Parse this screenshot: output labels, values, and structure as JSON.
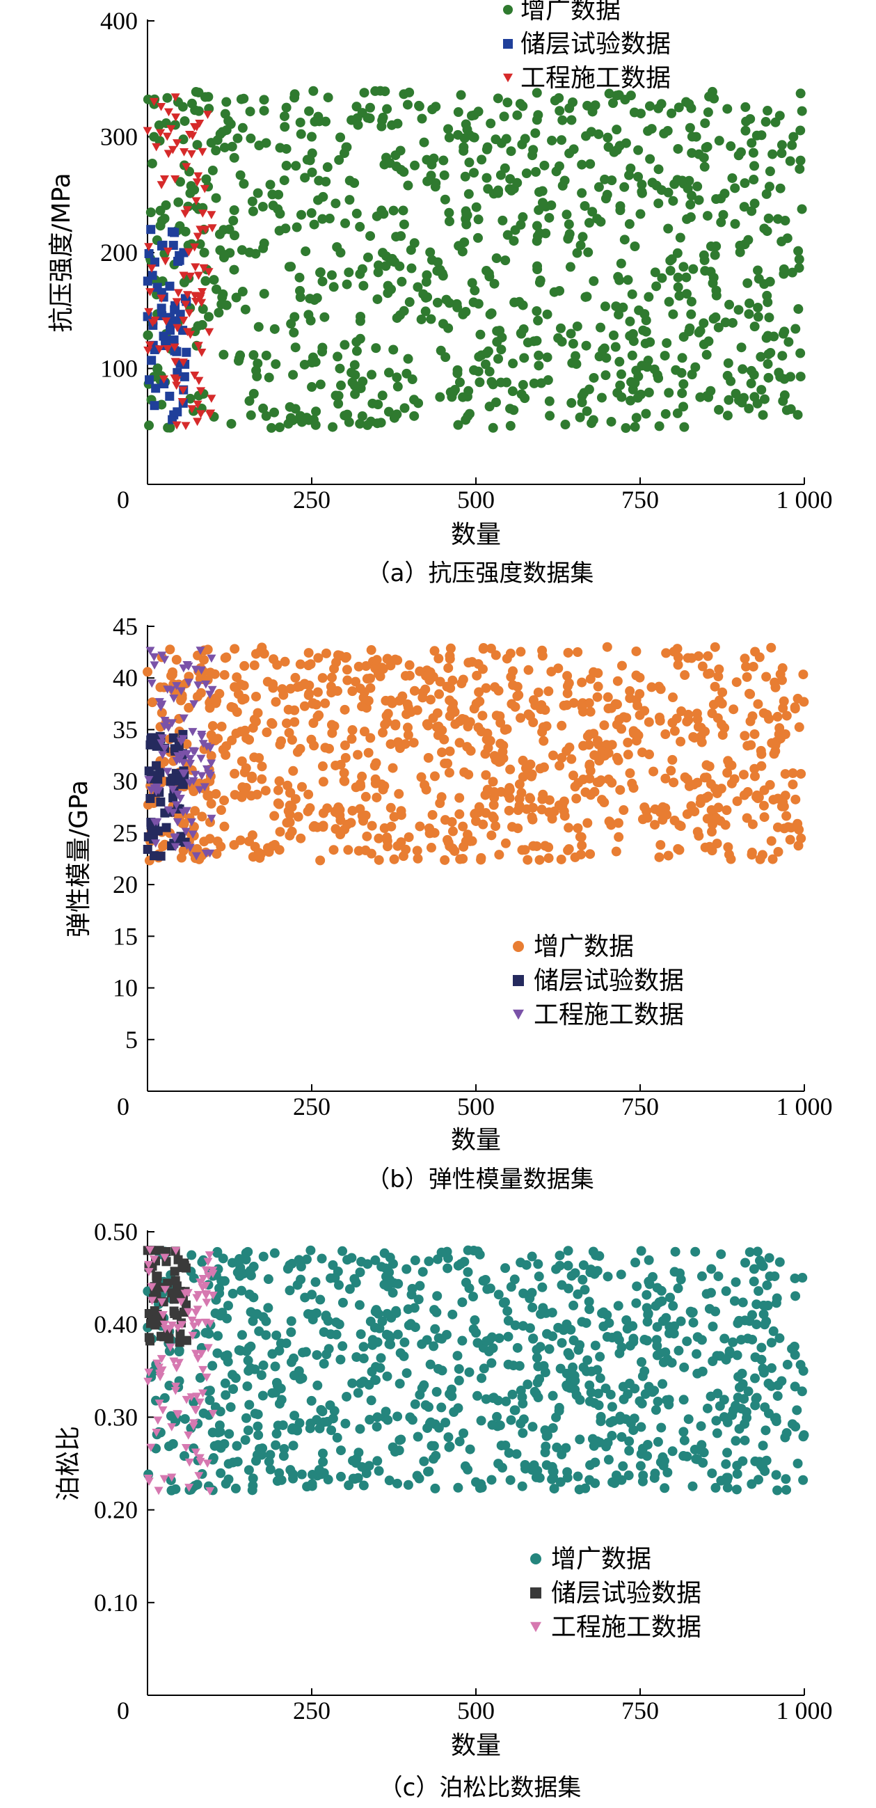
{
  "chart_data": [
    {
      "type": "scatter",
      "caption": "（a）抗压强度数据集",
      "xlabel": "数量",
      "ylabel": "抗压强度/MPa",
      "xlim": [
        0,
        1000
      ],
      "ylim": [
        0,
        400
      ],
      "xticks": [
        0,
        250,
        500,
        750,
        1000
      ],
      "xtick_labels": [
        "0",
        "250",
        "500",
        "750",
        "1 000"
      ],
      "yticks": [
        100,
        200,
        300,
        400
      ],
      "ytick_labels": [
        "100",
        "200",
        "300",
        "400"
      ],
      "grid": false,
      "legend_position": "top-right",
      "series": [
        {
          "name": "增广数据",
          "marker": "circle",
          "color": "#2f7a2f",
          "count": 1000,
          "x_range": [
            0,
            1000
          ],
          "y_range": [
            48,
            340
          ],
          "sample_points": [
            [
              120,
              330
            ],
            [
              250,
              300
            ],
            [
              330,
              338
            ],
            [
              450,
              180
            ],
            [
              610,
              90
            ],
            [
              700,
              250
            ],
            [
              820,
              330
            ],
            [
              990,
              60
            ]
          ]
        },
        {
          "name": "储层试验数据",
          "marker": "square",
          "color": "#1f3f9a",
          "count": 60,
          "x_range": [
            0,
            60
          ],
          "y_range": [
            50,
            230
          ],
          "sample_points": [
            [
              5,
              220
            ],
            [
              15,
              170
            ],
            [
              30,
              120
            ],
            [
              40,
              60
            ],
            [
              55,
              200
            ]
          ]
        },
        {
          "name": "工程施工数据",
          "marker": "triangle-down",
          "color": "#d62a2a",
          "count": 100,
          "x_range": [
            0,
            100
          ],
          "y_range": [
            50,
            335
          ],
          "sample_points": [
            [
              10,
              330
            ],
            [
              30,
              300
            ],
            [
              55,
              180
            ],
            [
              80,
              160
            ],
            [
              95,
              60
            ]
          ]
        }
      ]
    },
    {
      "type": "scatter",
      "caption": "（b）弹性模量数据集",
      "xlabel": "数量",
      "ylabel": "弹性模量/GPa",
      "xlim": [
        0,
        1000
      ],
      "ylim": [
        0,
        45
      ],
      "xticks": [
        0,
        250,
        500,
        750,
        1000
      ],
      "xtick_labels": [
        "0",
        "250",
        "500",
        "750",
        "1 000"
      ],
      "yticks": [
        5,
        10,
        15,
        20,
        25,
        30,
        35,
        40,
        45
      ],
      "ytick_labels": [
        "5",
        "10",
        "15",
        "20",
        "25",
        "30",
        "35",
        "40",
        "45"
      ],
      "grid": false,
      "legend_position": "center-right",
      "series": [
        {
          "name": "增广数据",
          "marker": "circle",
          "color": "#e87d32",
          "count": 1000,
          "x_range": [
            0,
            1000
          ],
          "y_range": [
            22.3,
            43
          ],
          "sample_points": [
            [
              120,
              42
            ],
            [
              300,
              30
            ],
            [
              480,
              22.5
            ],
            [
              700,
              43
            ],
            [
              990,
              38
            ]
          ]
        },
        {
          "name": "储层试验数据",
          "marker": "square",
          "color": "#252a5e",
          "count": 60,
          "x_range": [
            0,
            60
          ],
          "y_range": [
            22.5,
            35
          ],
          "sample_points": [
            [
              5,
              34
            ],
            [
              20,
              28
            ],
            [
              40,
              24
            ],
            [
              55,
              31
            ]
          ]
        },
        {
          "name": "工程施工数据",
          "marker": "triangle-down",
          "color": "#7a52a8",
          "count": 100,
          "x_range": [
            0,
            100
          ],
          "y_range": [
            22.3,
            43
          ],
          "sample_points": [
            [
              10,
              42
            ],
            [
              40,
              38
            ],
            [
              70,
              30
            ],
            [
              95,
              23
            ]
          ]
        }
      ]
    },
    {
      "type": "scatter",
      "caption": "（c）泊松比数据集",
      "xlabel": "数量",
      "ylabel": "泊松比",
      "xlim": [
        0,
        1000
      ],
      "ylim": [
        0,
        0.5
      ],
      "xticks": [
        0,
        250,
        500,
        750,
        1000
      ],
      "xtick_labels": [
        "0",
        "250",
        "500",
        "750",
        "1 000"
      ],
      "yticks": [
        0.1,
        0.2,
        0.3,
        0.4,
        0.5
      ],
      "ytick_labels": [
        "0.10",
        "0.20",
        "0.30",
        "0.40",
        "0.50"
      ],
      "grid": false,
      "legend_position": "bottom-right",
      "series": [
        {
          "name": "增广数据",
          "marker": "circle",
          "color": "#24857d",
          "count": 1000,
          "x_range": [
            0,
            1000
          ],
          "y_range": [
            0.22,
            0.48
          ],
          "sample_points": [
            [
              150,
              0.47
            ],
            [
              350,
              0.3
            ],
            [
              500,
              0.23
            ],
            [
              800,
              0.42
            ],
            [
              990,
              0.25
            ]
          ]
        },
        {
          "name": "储层试验数据",
          "marker": "square",
          "color": "#3a3a3a",
          "count": 60,
          "x_range": [
            0,
            60
          ],
          "y_range": [
            0.38,
            0.48
          ],
          "sample_points": [
            [
              5,
              0.48
            ],
            [
              25,
              0.44
            ],
            [
              45,
              0.41
            ]
          ]
        },
        {
          "name": "工程施工数据",
          "marker": "triangle-down",
          "color": "#d678b0",
          "count": 100,
          "x_range": [
            0,
            100
          ],
          "y_range": [
            0.22,
            0.48
          ],
          "sample_points": [
            [
              10,
              0.47
            ],
            [
              40,
              0.36
            ],
            [
              70,
              0.29
            ],
            [
              95,
              0.22
            ]
          ]
        }
      ]
    }
  ]
}
